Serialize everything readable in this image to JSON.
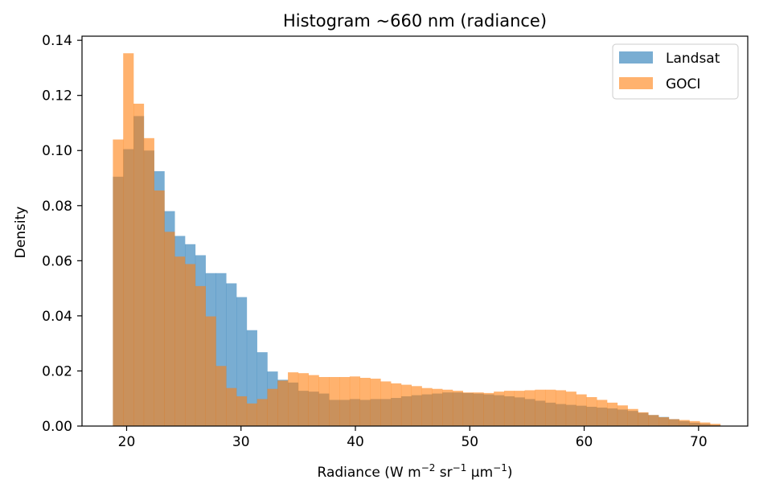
{
  "chart_data": {
    "type": "histogram",
    "title": "Histogram ~660 nm (radiance)",
    "xlabel": {
      "base": "Radiance (W m",
      "exp1": "−2",
      "mid1": " sr",
      "exp2": "−1",
      "mid2": " μm",
      "exp3": "−1",
      "end": ")"
    },
    "ylabel": "Density",
    "xlim": [
      16.1,
      74.3
    ],
    "ylim": [
      0,
      0.1415
    ],
    "xticks": [
      20,
      30,
      40,
      50,
      60,
      70
    ],
    "xtick_labels": [
      "20",
      "30",
      "40",
      "50",
      "60",
      "70"
    ],
    "yticks": [
      0,
      0.02,
      0.04,
      0.06,
      0.08,
      0.1,
      0.12,
      0.14
    ],
    "ytick_labels": [
      "0.00",
      "0.02",
      "0.04",
      "0.06",
      "0.08",
      "0.10",
      "0.12",
      "0.14"
    ],
    "bin_start": 18.8,
    "bin_width": 0.9,
    "legend_position": "top-right",
    "series": [
      {
        "name": "Landsat",
        "color": "#1f77b4",
        "alpha": 0.6,
        "start_bin": 0,
        "values": [
          0.0905,
          0.1005,
          0.1125,
          0.1,
          0.0925,
          0.078,
          0.069,
          0.066,
          0.062,
          0.0555,
          0.0555,
          0.0518,
          0.0468,
          0.0348,
          0.0268,
          0.0198,
          0.0168,
          0.0158,
          0.0128,
          0.0125,
          0.0118,
          0.0095,
          0.0095,
          0.0098,
          0.0095,
          0.0098,
          0.0098,
          0.0102,
          0.0108,
          0.0112,
          0.0115,
          0.0118,
          0.0122,
          0.0122,
          0.012,
          0.0118,
          0.0115,
          0.0112,
          0.0108,
          0.0104,
          0.0098,
          0.0092,
          0.0085,
          0.008,
          0.0077,
          0.0074,
          0.007,
          0.0067,
          0.0064,
          0.006,
          0.0055,
          0.0048,
          0.004,
          0.0033,
          0.0025,
          0.0018,
          0.0012,
          0.0008,
          0.0004
        ]
      },
      {
        "name": "GOCI",
        "color": "#ff7f0e",
        "alpha": 0.6,
        "start_bin": 0,
        "values": [
          0.104,
          0.1353,
          0.117,
          0.1045,
          0.0855,
          0.0705,
          0.0615,
          0.0588,
          0.0508,
          0.0398,
          0.0218,
          0.0138,
          0.0108,
          0.0082,
          0.0098,
          0.0135,
          0.0165,
          0.0195,
          0.0192,
          0.0185,
          0.0178,
          0.0178,
          0.0178,
          0.018,
          0.0175,
          0.0172,
          0.0162,
          0.0155,
          0.015,
          0.0145,
          0.0138,
          0.0135,
          0.0132,
          0.0128,
          0.0122,
          0.0122,
          0.012,
          0.0125,
          0.0128,
          0.0128,
          0.013,
          0.0132,
          0.0132,
          0.013,
          0.0125,
          0.0115,
          0.0105,
          0.0095,
          0.0085,
          0.0075,
          0.0062,
          0.005,
          0.004,
          0.0032,
          0.0025,
          0.0022,
          0.0018,
          0.0013,
          0.0008
        ]
      }
    ]
  }
}
